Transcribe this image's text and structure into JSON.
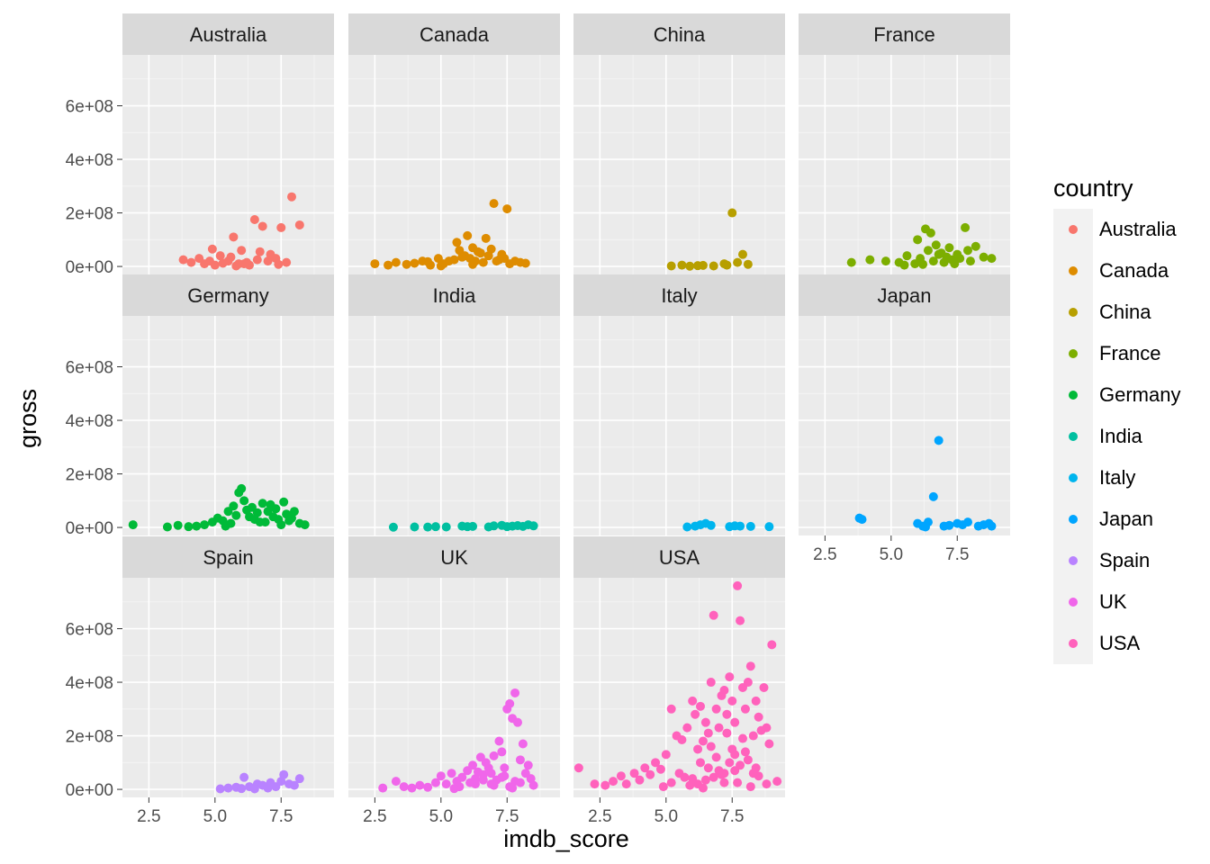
{
  "chart_data": {
    "type": "scatter",
    "facet_by": "country",
    "xlabel": "imdb_score",
    "ylabel": "gross",
    "xlim": [
      1.5,
      9.5
    ],
    "ylim": [
      -30000000,
      790000000
    ],
    "x_ticks": [
      2.5,
      5.0,
      7.5
    ],
    "x_tick_labels": [
      "2.5",
      "5.0",
      "7.5"
    ],
    "y_ticks": [
      0,
      200000000,
      400000000,
      600000000
    ],
    "y_tick_labels": [
      "0e+00",
      "2e+08",
      "4e+08",
      "6e+08"
    ],
    "grid": true,
    "legend": {
      "title": "country",
      "position": "right"
    },
    "series": [
      {
        "name": "Australia",
        "color": "#F8766D",
        "x": [
          3.8,
          4.1,
          4.4,
          4.6,
          4.8,
          5.0,
          5.2,
          5.5,
          5.7,
          5.9,
          6.0,
          6.2,
          6.3,
          6.5,
          6.6,
          6.8,
          7.0,
          7.1,
          7.3,
          7.5,
          7.7,
          4.9,
          5.6,
          6.1,
          6.7,
          7.4,
          5.3,
          7.9,
          8.2,
          5.8
        ],
        "y": [
          25000000,
          15000000,
          30000000,
          10000000,
          20000000,
          5000000,
          40000000,
          20000000,
          110000000,
          10000000,
          60000000,
          15000000,
          5000000,
          175000000,
          25000000,
          150000000,
          20000000,
          45000000,
          30000000,
          145000000,
          15000000,
          65000000,
          35000000,
          10000000,
          55000000,
          8000000,
          12000000,
          260000000,
          155000000,
          2000000
        ]
      },
      {
        "name": "Canada",
        "color": "#DE8C00",
        "x": [
          2.5,
          3.0,
          3.3,
          3.7,
          4.0,
          4.3,
          4.6,
          4.9,
          5.1,
          5.3,
          5.5,
          5.7,
          5.9,
          6.0,
          6.1,
          6.2,
          6.3,
          6.4,
          6.5,
          6.6,
          6.7,
          6.8,
          7.0,
          7.1,
          7.3,
          7.5,
          7.6,
          7.8,
          8.0,
          8.2,
          5.6,
          5.8,
          6.9,
          7.2,
          7.4,
          6.2,
          5.0,
          4.5
        ],
        "y": [
          10000000,
          5000000,
          15000000,
          8000000,
          12000000,
          20000000,
          5000000,
          30000000,
          10000000,
          20000000,
          25000000,
          60000000,
          40000000,
          115000000,
          30000000,
          70000000,
          20000000,
          55000000,
          50000000,
          15000000,
          105000000,
          40000000,
          235000000,
          20000000,
          45000000,
          215000000,
          10000000,
          20000000,
          15000000,
          12000000,
          90000000,
          35000000,
          65000000,
          25000000,
          30000000,
          8000000,
          2000000,
          18000000
        ]
      },
      {
        "name": "China",
        "color": "#B79F00",
        "x": [
          5.2,
          5.6,
          5.9,
          6.2,
          6.4,
          6.8,
          7.2,
          7.5,
          7.7,
          7.9,
          7.3,
          8.1
        ],
        "y": [
          2000000,
          5000000,
          1000000,
          3000000,
          4000000,
          2000000,
          10000000,
          200000000,
          15000000,
          45000000,
          5000000,
          8000000
        ],
        "note": ""
      },
      {
        "name": "France",
        "color": "#7CAE00",
        "x": [
          3.5,
          4.2,
          4.8,
          5.3,
          5.6,
          5.9,
          6.1,
          6.3,
          6.4,
          6.5,
          6.6,
          6.7,
          6.9,
          7.0,
          7.2,
          7.3,
          7.5,
          7.6,
          7.8,
          7.9,
          8.0,
          8.2,
          8.5,
          8.8,
          6.0,
          6.8,
          7.4,
          5.5,
          7.1,
          6.2
        ],
        "y": [
          15000000,
          25000000,
          20000000,
          15000000,
          40000000,
          10000000,
          30000000,
          140000000,
          60000000,
          125000000,
          20000000,
          80000000,
          50000000,
          15000000,
          70000000,
          25000000,
          45000000,
          30000000,
          145000000,
          60000000,
          20000000,
          75000000,
          35000000,
          30000000,
          100000000,
          45000000,
          10000000,
          5000000,
          35000000,
          8000000
        ]
      },
      {
        "name": "Germany",
        "color": "#00BA38",
        "x": [
          1.9,
          3.2,
          3.6,
          4.0,
          4.3,
          4.6,
          4.9,
          5.1,
          5.3,
          5.5,
          5.6,
          5.7,
          5.8,
          5.9,
          6.0,
          6.1,
          6.2,
          6.3,
          6.4,
          6.5,
          6.6,
          6.8,
          6.9,
          7.0,
          7.1,
          7.2,
          7.3,
          7.4,
          7.6,
          7.7,
          7.8,
          7.9,
          8.0,
          8.2,
          8.4,
          5.4,
          6.7,
          7.5
        ],
        "y": [
          10000000,
          2000000,
          8000000,
          3000000,
          5000000,
          10000000,
          20000000,
          35000000,
          25000000,
          60000000,
          15000000,
          80000000,
          45000000,
          130000000,
          145000000,
          100000000,
          65000000,
          40000000,
          75000000,
          30000000,
          55000000,
          90000000,
          20000000,
          60000000,
          85000000,
          40000000,
          70000000,
          30000000,
          95000000,
          50000000,
          25000000,
          35000000,
          60000000,
          15000000,
          10000000,
          5000000,
          20000000,
          10000000
        ]
      },
      {
        "name": "India",
        "color": "#00BFA0",
        "x": [
          3.2,
          4.0,
          4.5,
          4.8,
          5.2,
          5.8,
          6.0,
          6.2,
          6.8,
          7.0,
          7.3,
          7.5,
          7.7,
          7.9,
          8.1,
          8.3,
          8.5
        ],
        "y": [
          1000000,
          2000000,
          1500000,
          3000000,
          2000000,
          5000000,
          3000000,
          4000000,
          2000000,
          6000000,
          8000000,
          3000000,
          5000000,
          7000000,
          4000000,
          10000000,
          6000000
        ]
      },
      {
        "name": "Italy",
        "color": "#00B5EE",
        "x": [
          5.8,
          6.1,
          6.3,
          6.5,
          6.7,
          7.4,
          7.6,
          7.8,
          8.2,
          8.9
        ],
        "y": [
          2000000,
          5000000,
          10000000,
          15000000,
          8000000,
          3000000,
          6000000,
          5000000,
          4000000,
          3000000
        ]
      },
      {
        "name": "Japan",
        "color": "#00A5FF",
        "x": [
          3.8,
          3.9,
          6.0,
          6.2,
          6.4,
          6.6,
          6.8,
          7.0,
          7.5,
          7.7,
          7.9,
          8.3,
          8.5,
          8.7,
          8.8,
          6.3,
          7.2
        ],
        "y": [
          35000000,
          30000000,
          15000000,
          5000000,
          20000000,
          115000000,
          325000000,
          5000000,
          15000000,
          10000000,
          20000000,
          5000000,
          10000000,
          15000000,
          5000000,
          2000000,
          8000000
        ]
      },
      {
        "name": "Spain",
        "color": "#B983FF",
        "x": [
          5.2,
          5.5,
          5.8,
          6.0,
          6.1,
          6.3,
          6.5,
          6.6,
          6.8,
          7.0,
          7.1,
          7.3,
          7.5,
          7.6,
          7.8,
          8.0,
          8.2
        ],
        "y": [
          2000000,
          5000000,
          8000000,
          3000000,
          45000000,
          10000000,
          2000000,
          20000000,
          15000000,
          5000000,
          25000000,
          10000000,
          30000000,
          55000000,
          20000000,
          15000000,
          40000000
        ]
      },
      {
        "name": "UK",
        "color": "#F066EA",
        "x": [
          2.8,
          3.3,
          3.6,
          3.9,
          4.2,
          4.5,
          4.8,
          5.0,
          5.2,
          5.4,
          5.6,
          5.8,
          6.0,
          6.1,
          6.2,
          6.3,
          6.4,
          6.5,
          6.6,
          6.7,
          6.8,
          6.9,
          7.0,
          7.1,
          7.2,
          7.3,
          7.4,
          7.5,
          7.6,
          7.7,
          7.8,
          7.9,
          8.0,
          8.1,
          8.2,
          8.3,
          8.4,
          8.5,
          6.3,
          6.6,
          7.0,
          7.3,
          7.6,
          7.8,
          5.7,
          6.9,
          7.4,
          7.7,
          8.0,
          5.5
        ],
        "y": [
          5000000,
          30000000,
          10000000,
          5000000,
          15000000,
          8000000,
          25000000,
          50000000,
          20000000,
          60000000,
          30000000,
          45000000,
          70000000,
          25000000,
          90000000,
          40000000,
          65000000,
          120000000,
          55000000,
          100000000,
          80000000,
          60000000,
          125000000,
          35000000,
          180000000,
          140000000,
          80000000,
          300000000,
          320000000,
          265000000,
          360000000,
          250000000,
          110000000,
          170000000,
          60000000,
          90000000,
          40000000,
          15000000,
          20000000,
          35000000,
          15000000,
          45000000,
          10000000,
          30000000,
          10000000,
          20000000,
          50000000,
          5000000,
          25000000,
          3000000
        ]
      },
      {
        "name": "USA",
        "color": "#FF62BC",
        "x": [
          1.7,
          2.3,
          2.7,
          3.0,
          3.3,
          3.5,
          3.8,
          4.0,
          4.2,
          4.4,
          4.6,
          4.8,
          5.0,
          5.2,
          5.4,
          5.6,
          5.8,
          6.0,
          6.1,
          6.2,
          6.3,
          6.4,
          6.5,
          6.6,
          6.7,
          6.8,
          6.9,
          7.0,
          7.1,
          7.2,
          7.3,
          7.4,
          7.5,
          7.6,
          7.7,
          7.8,
          7.9,
          8.0,
          8.1,
          8.2,
          8.3,
          8.4,
          8.5,
          8.6,
          8.7,
          8.8,
          8.9,
          9.0,
          9.2,
          4.9,
          5.5,
          6.0,
          6.3,
          6.6,
          6.9,
          7.2,
          7.5,
          7.8,
          8.1,
          8.5,
          5.2,
          5.7,
          6.2,
          6.7,
          7.0,
          7.3,
          7.6,
          7.9,
          8.4,
          5.9,
          6.5,
          7.1,
          7.4,
          7.7,
          8.0,
          8.3,
          8.8,
          6.4,
          6.8,
          7.2,
          7.6,
          8.2
        ],
        "y": [
          80000000,
          20000000,
          15000000,
          30000000,
          50000000,
          20000000,
          60000000,
          35000000,
          80000000,
          55000000,
          100000000,
          75000000,
          130000000,
          300000000,
          200000000,
          185000000,
          230000000,
          330000000,
          280000000,
          150000000,
          310000000,
          180000000,
          250000000,
          210000000,
          400000000,
          650000000,
          300000000,
          230000000,
          350000000,
          370000000,
          280000000,
          420000000,
          330000000,
          250000000,
          760000000,
          630000000,
          380000000,
          300000000,
          400000000,
          460000000,
          200000000,
          330000000,
          270000000,
          220000000,
          380000000,
          230000000,
          170000000,
          540000000,
          30000000,
          10000000,
          60000000,
          40000000,
          100000000,
          80000000,
          120000000,
          60000000,
          150000000,
          90000000,
          110000000,
          50000000,
          25000000,
          45000000,
          20000000,
          160000000,
          70000000,
          210000000,
          130000000,
          190000000,
          80000000,
          15000000,
          35000000,
          55000000,
          100000000,
          25000000,
          140000000,
          60000000,
          20000000,
          5000000,
          45000000,
          25000000,
          70000000,
          10000000
        ]
      }
    ]
  }
}
